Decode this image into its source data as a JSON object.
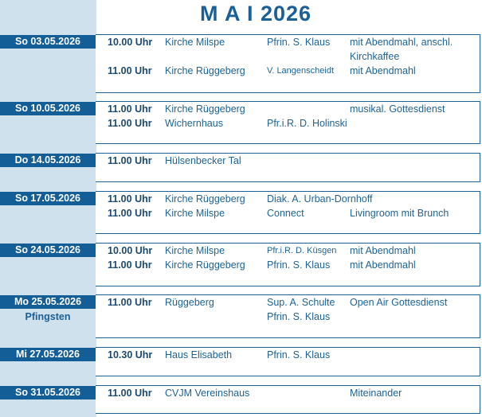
{
  "title": "M A I 2026",
  "colors": {
    "accent": "#135e96",
    "sidebar": "#cfe1ed",
    "text": "#1f6494"
  },
  "services": [
    {
      "date": "So 03.05.2026",
      "rows": [
        {
          "time": "10.00 Uhr",
          "place": "Kirche Milspe",
          "person": "Pfrin. S. Klaus",
          "note": "mit Abendmahl, anschl."
        },
        {
          "time": "",
          "place": "",
          "person": "",
          "note": "Kirchkaffee"
        },
        {
          "time": "11.00 Uhr",
          "place": "Kirche Rüggeberg",
          "person": "V. Langenscheidt",
          "note": "mit Abendmahl"
        }
      ]
    },
    {
      "date": "So 10.05.2026",
      "rows": [
        {
          "time": "11.00 Uhr",
          "place": "Kirche Rüggeberg",
          "person": "",
          "note": "musikal. Gottesdienst"
        },
        {
          "time": "11.00 Uhr",
          "place": "Wichernhaus",
          "person": "Pfr.i.R. D. Holinski",
          "note": ""
        }
      ]
    },
    {
      "date": "Do 14.05.2026",
      "rows": [
        {
          "time": "11.00 Uhr",
          "place": "Hülsenbecker Tal",
          "person": "",
          "note": ""
        }
      ]
    },
    {
      "date": "So 17.05.2026",
      "rows": [
        {
          "time": "11.00 Uhr",
          "place": "Kirche Rüggeberg",
          "person": "Diak. A. Urban-Dornhoff",
          "note": ""
        },
        {
          "time": "11.00 Uhr",
          "place": "Kirche Milspe",
          "person": "Connect",
          "note": "Livingroom mit Brunch"
        }
      ]
    },
    {
      "date": "So 24.05.2026",
      "rows": [
        {
          "time": "10.00 Uhr",
          "place": "Kirche Milspe",
          "person": "Pfr.i.R. D. Küsgen",
          "note": "mit Abendmahl"
        },
        {
          "time": "11.00 Uhr",
          "place": "Kirche Rüggeberg",
          "person": "Pfrin. S. Klaus",
          "note": "mit Abendmahl"
        }
      ]
    },
    {
      "date": "Mo 25.05.2026",
      "subtitle": "Pfingsten",
      "rows": [
        {
          "time": "11.00 Uhr",
          "place": "Rüggeberg",
          "person": "Sup. A. Schulte",
          "note": "Open Air Gottesdienst"
        },
        {
          "time": "",
          "place": "",
          "person": "Pfrin. S. Klaus",
          "note": ""
        }
      ]
    },
    {
      "date": "Mi 27.05.2026",
      "rows": [
        {
          "time": "10.30 Uhr",
          "place": "Haus Elisabeth",
          "person": "Pfrin. S. Klaus",
          "note": ""
        }
      ]
    },
    {
      "date": "So 31.05.2026",
      "rows": [
        {
          "time": "11.00 Uhr",
          "place": "CVJM Vereinshaus",
          "person": "",
          "note": "Miteinander"
        }
      ]
    }
  ]
}
